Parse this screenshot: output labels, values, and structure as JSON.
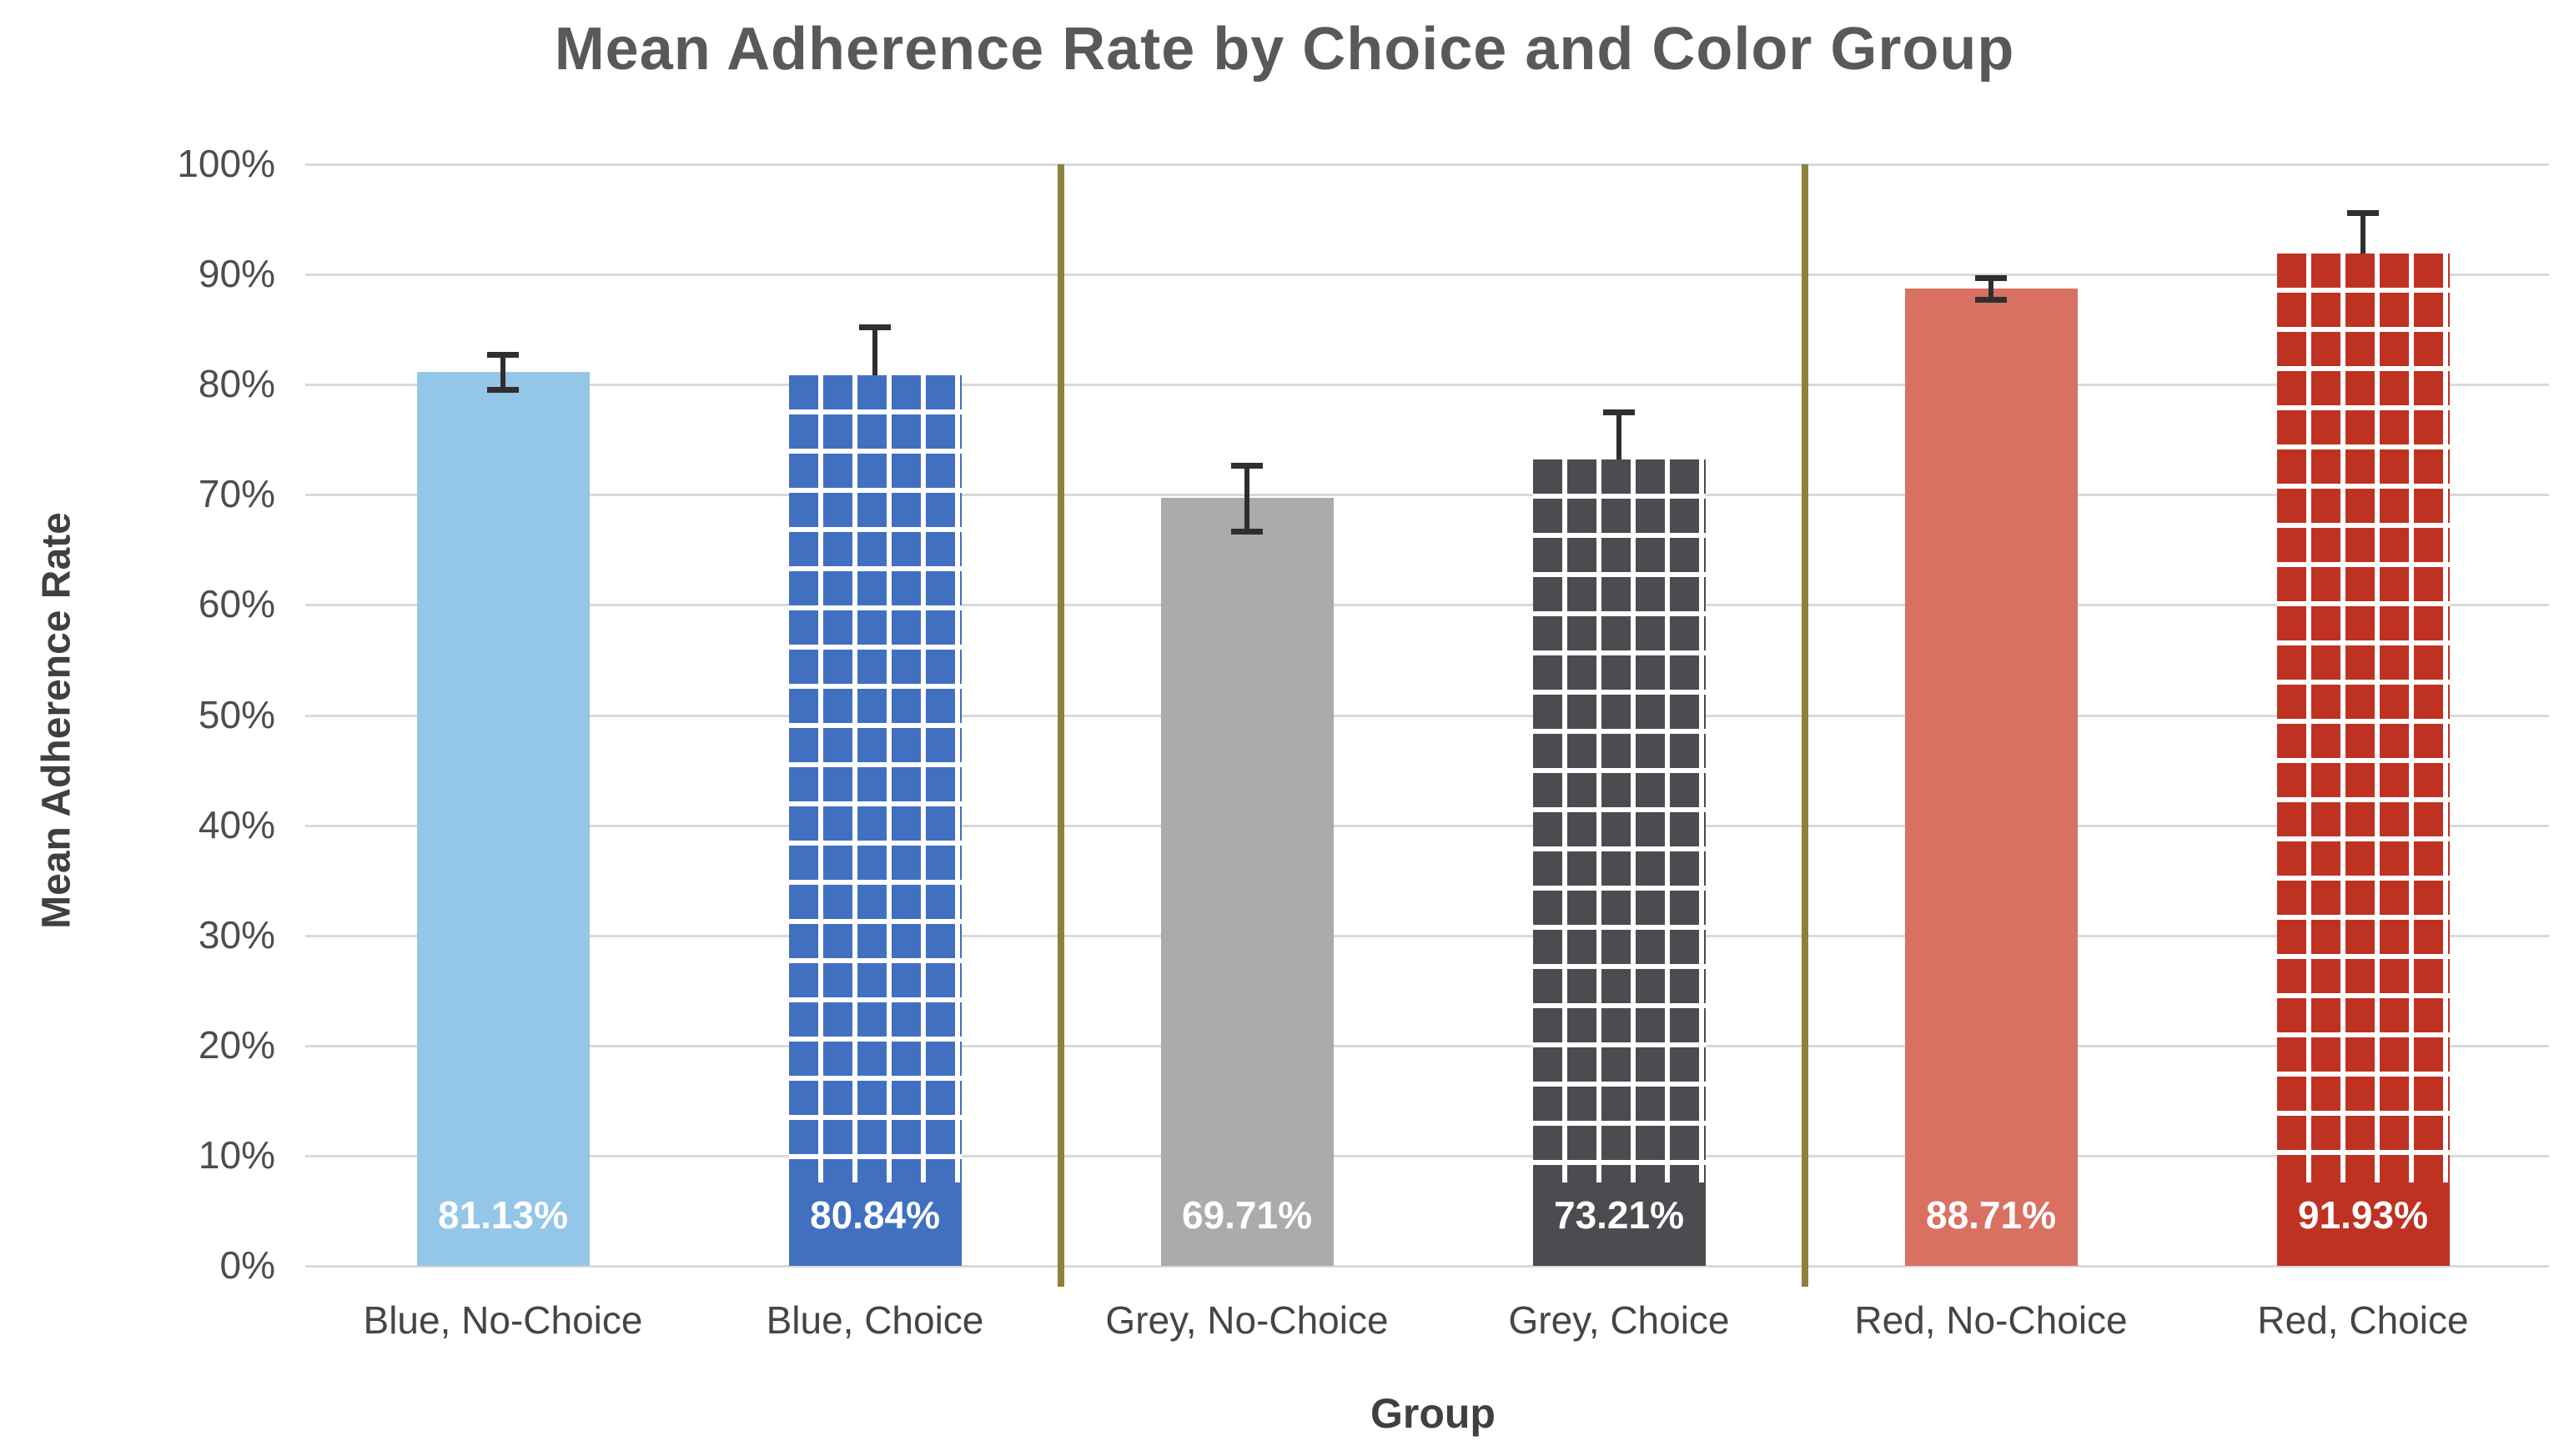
{
  "title": "Mean Adherence Rate by Choice and Color Group",
  "chart_data": {
    "type": "bar",
    "title": "Mean Adherence Rate by Choice and Color Group",
    "xlabel": "Group",
    "ylabel": "Mean Adherence Rate",
    "ylim": [
      0,
      100
    ],
    "grid": "horizontal-gridlines",
    "legend": "none",
    "ytick_labels": [
      "0%",
      "10%",
      "20%",
      "30%",
      "40%",
      "50%",
      "60%",
      "70%",
      "80%",
      "90%",
      "100%"
    ],
    "categories": [
      "Blue, No-Choice",
      "Blue, Choice",
      "Grey, No-Choice",
      "Grey, Choice",
      "Red, No-Choice",
      "Red, Choice"
    ],
    "values": [
      81.13,
      80.84,
      69.71,
      73.21,
      88.71,
      91.93
    ],
    "value_labels": [
      "81.13%",
      "80.84%",
      "69.71%",
      "73.21%",
      "88.71%",
      "91.93%"
    ],
    "error_up_pct": [
      1.6,
      4.4,
      3.0,
      4.3,
      1.0,
      3.7
    ],
    "error_down_pct": [
      1.6,
      0,
      3.0,
      0,
      1.0,
      0
    ],
    "bar_styles": [
      {
        "fill": "#94C6E8",
        "pattern": "none"
      },
      {
        "fill": "#4170C0",
        "pattern": "white-grid"
      },
      {
        "fill": "#ABABAD",
        "pattern": "none"
      },
      {
        "fill": "#4B4B50",
        "pattern": "white-grid"
      },
      {
        "fill": "#D97162",
        "pattern": "none"
      },
      {
        "fill": "#BF3222",
        "pattern": "white-grid"
      }
    ],
    "divider_after_indices": [
      1,
      3
    ],
    "colors": {
      "divider": "#8E813C",
      "gridline": "#D9D9D9",
      "error_bar": "#2F2F2F",
      "value_label": "#FFFFFF",
      "title_text": "#595959",
      "tick_text": "#4D4D4D",
      "axis_title_text": "#404040",
      "background": "#FFFFFF"
    }
  }
}
